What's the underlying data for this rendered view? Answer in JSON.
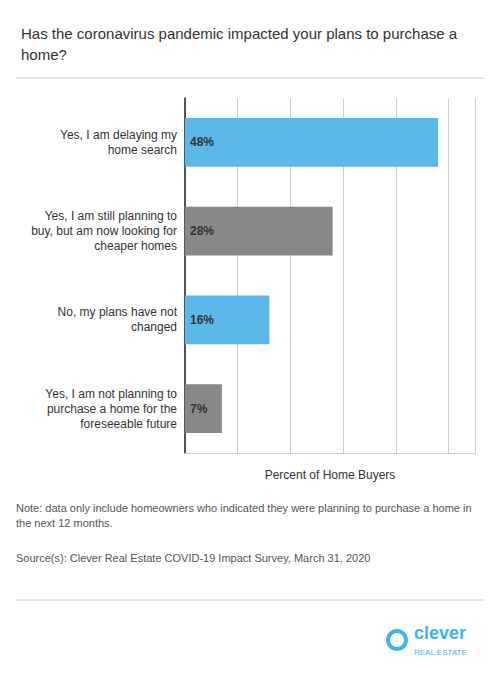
{
  "chart_data": {
    "type": "bar",
    "orientation": "horizontal",
    "title": "Has the coronavirus pandemic impacted your plans to purchase a\nhome?",
    "categories": [
      "Yes, I am delaying my\nhome search",
      "Yes, I am still planning to\nbuy, but am now looking for\ncheaper homes",
      "No, my plans have not\nchanged",
      "Yes, I am not planning to\npurchase a home for the\nforeseeable future"
    ],
    "values": [
      48,
      28,
      16,
      7
    ],
    "value_labels": [
      "48%",
      "28%",
      "16%",
      "7%"
    ],
    "data_labels": true,
    "colors": [
      "#5BB8E8",
      "#888888",
      "#5BB8E8",
      "#888888"
    ],
    "xlabel": "Percent of Home Buyers",
    "xlim": [
      0,
      55
    ],
    "xticks": [
      0,
      10,
      20,
      30,
      40,
      50
    ],
    "grid": true,
    "tick_labels": "y",
    "annotations": [
      {
        "text": "Note: data only include homeowners who indicated they were planning to purchase a home in the next 12 months."
      },
      {
        "text": "Source(s): Clever Real Estate COVID-19 Impact Survey, March 31, 2020"
      },
      {
        "text": "clever",
        "color": "#3EB5E5"
      },
      {
        "text": "REAL ESTATE",
        "color": "#3EB5E5"
      }
    ]
  }
}
